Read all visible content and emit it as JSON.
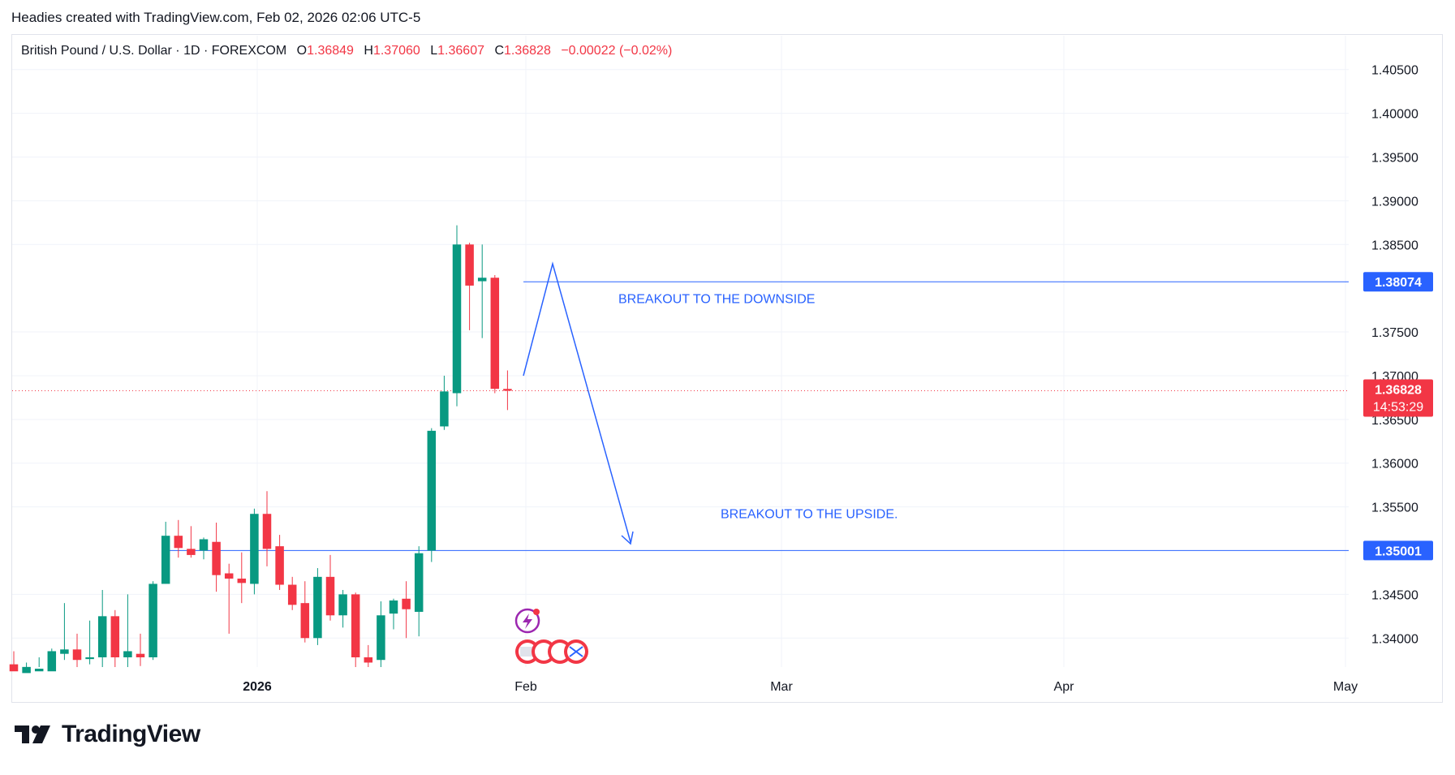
{
  "header": {
    "text": "Headies created with TradingView.com, Feb 02, 2026 02:06 UTC-5"
  },
  "legend": {
    "symbol": "British Pound / U.S. Dollar · 1D · FOREXCOM",
    "o_label": "O",
    "o_value": "1.36849",
    "h_label": "H",
    "h_value": "1.37060",
    "l_label": "L",
    "l_value": "1.36607",
    "c_label": "C",
    "c_value": "1.36828",
    "change": "−0.00022 (−0.02%)"
  },
  "footer": {
    "brand": "TradingView"
  },
  "colors": {
    "up": "#089981",
    "down": "#f23645",
    "annotation": "#2962ff",
    "grid": "#f0f3fa"
  },
  "chart_data": {
    "type": "candlestick",
    "x_tick_labels": [
      "2026",
      "Feb",
      "Mar",
      "Apr",
      "May"
    ],
    "y_tick_labels": [
      "1.40500",
      "1.40000",
      "1.39500",
      "1.39000",
      "1.38500",
      "1.37500",
      "1.37000",
      "1.36500",
      "1.36000",
      "1.35500",
      "1.34500",
      "1.34000"
    ],
    "ylim": [
      1.3365,
      1.4085
    ],
    "grid": true,
    "price_labels": [
      {
        "value": 1.38074,
        "text": "1.38074",
        "color": "#2962ff"
      },
      {
        "value": 1.35001,
        "text": "1.35001",
        "color": "#2962ff"
      },
      {
        "value": 1.36828,
        "text": "1.36828",
        "sub": "14:53:29",
        "color": "#f23645"
      }
    ],
    "horizontal_lines": [
      {
        "value": 1.38074,
        "color": "#2962ff"
      },
      {
        "value": 1.35001,
        "color": "#2962ff"
      }
    ],
    "current_price": 1.36828,
    "annotations": [
      {
        "text": "BREAKOUT TO THE DOWNSIDE",
        "value": 1.3783
      },
      {
        "text": "BREAKOUT TO THE UPSIDE.",
        "value": 1.3537
      }
    ],
    "candles": [
      {
        "o": 1.337,
        "h": 1.3385,
        "l": 1.336,
        "c": 1.3362
      },
      {
        "o": 1.336,
        "h": 1.3372,
        "l": 1.335,
        "c": 1.3367
      },
      {
        "o": 1.3362,
        "h": 1.3378,
        "l": 1.3355,
        "c": 1.3365
      },
      {
        "o": 1.3362,
        "h": 1.3388,
        "l": 1.3355,
        "c": 1.3385
      },
      {
        "o": 1.3382,
        "h": 1.344,
        "l": 1.3375,
        "c": 1.3387
      },
      {
        "o": 1.3387,
        "h": 1.3405,
        "l": 1.3362,
        "c": 1.3375
      },
      {
        "o": 1.3376,
        "h": 1.342,
        "l": 1.337,
        "c": 1.3378
      },
      {
        "o": 1.3378,
        "h": 1.3455,
        "l": 1.3362,
        "c": 1.3425
      },
      {
        "o": 1.3425,
        "h": 1.3432,
        "l": 1.3362,
        "c": 1.3378
      },
      {
        "o": 1.3378,
        "h": 1.345,
        "l": 1.336,
        "c": 1.3385
      },
      {
        "o": 1.3382,
        "h": 1.3405,
        "l": 1.3368,
        "c": 1.3378
      },
      {
        "o": 1.3378,
        "h": 1.3465,
        "l": 1.3375,
        "c": 1.3462
      },
      {
        "o": 1.3462,
        "h": 1.3533,
        "l": 1.3462,
        "c": 1.3517
      },
      {
        "o": 1.3517,
        "h": 1.3535,
        "l": 1.3492,
        "c": 1.3503
      },
      {
        "o": 1.3502,
        "h": 1.3528,
        "l": 1.3492,
        "c": 1.3495
      },
      {
        "o": 1.35,
        "h": 1.3515,
        "l": 1.349,
        "c": 1.3513
      },
      {
        "o": 1.351,
        "h": 1.3532,
        "l": 1.3453,
        "c": 1.3472
      },
      {
        "o": 1.3474,
        "h": 1.3485,
        "l": 1.3405,
        "c": 1.3468
      },
      {
        "o": 1.3468,
        "h": 1.3498,
        "l": 1.344,
        "c": 1.3463
      },
      {
        "o": 1.3462,
        "h": 1.3548,
        "l": 1.345,
        "c": 1.3542
      },
      {
        "o": 1.3542,
        "h": 1.3568,
        "l": 1.3482,
        "c": 1.3502
      },
      {
        "o": 1.3505,
        "h": 1.3518,
        "l": 1.3455,
        "c": 1.3461
      },
      {
        "o": 1.3461,
        "h": 1.347,
        "l": 1.3432,
        "c": 1.3438
      },
      {
        "o": 1.344,
        "h": 1.3465,
        "l": 1.3395,
        "c": 1.34
      },
      {
        "o": 1.34,
        "h": 1.348,
        "l": 1.3392,
        "c": 1.347
      },
      {
        "o": 1.347,
        "h": 1.3495,
        "l": 1.342,
        "c": 1.3426
      },
      {
        "o": 1.3426,
        "h": 1.3455,
        "l": 1.3412,
        "c": 1.345
      },
      {
        "o": 1.345,
        "h": 1.3452,
        "l": 1.3362,
        "c": 1.3378
      },
      {
        "o": 1.3378,
        "h": 1.3392,
        "l": 1.3363,
        "c": 1.3372
      },
      {
        "o": 1.3375,
        "h": 1.3442,
        "l": 1.3355,
        "c": 1.3426
      },
      {
        "o": 1.3428,
        "h": 1.3445,
        "l": 1.341,
        "c": 1.3443
      },
      {
        "o": 1.3445,
        "h": 1.3465,
        "l": 1.34,
        "c": 1.3433
      },
      {
        "o": 1.343,
        "h": 1.3505,
        "l": 1.3402,
        "c": 1.3497
      },
      {
        "o": 1.35,
        "h": 1.364,
        "l": 1.3487,
        "c": 1.3637
      },
      {
        "o": 1.3642,
        "h": 1.37,
        "l": 1.3638,
        "c": 1.3682
      },
      {
        "o": 1.368,
        "h": 1.3872,
        "l": 1.3665,
        "c": 1.385
      },
      {
        "o": 1.385,
        "h": 1.3852,
        "l": 1.3752,
        "c": 1.3803
      },
      {
        "o": 1.3808,
        "h": 1.385,
        "l": 1.3743,
        "c": 1.3812
      },
      {
        "o": 1.3812,
        "h": 1.3815,
        "l": 1.368,
        "c": 1.3685
      },
      {
        "o": 1.36849,
        "h": 1.3706,
        "l": 1.36607,
        "c": 1.36828
      }
    ]
  }
}
